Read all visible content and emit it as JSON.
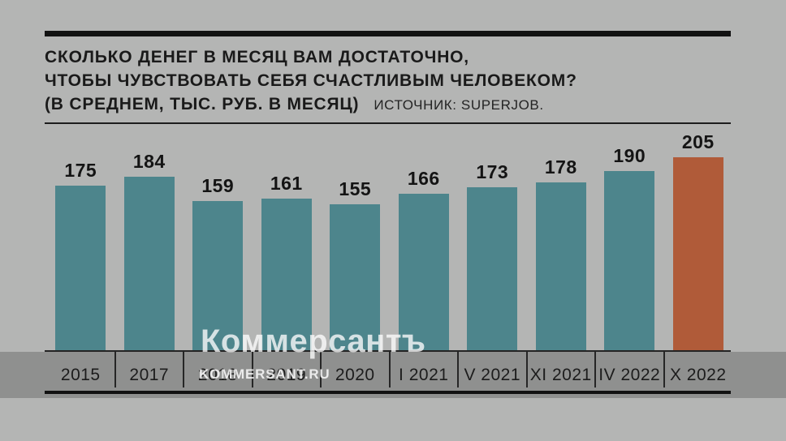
{
  "header": {
    "title_line1": "СКОЛЬКО ДЕНЕГ В МЕСЯЦ ВАМ ДОСТАТОЧНО,",
    "title_line2": "ЧТОБЫ ЧУВСТВОВАТЬ СЕБЯ СЧАСТЛИВЫМ ЧЕЛОВЕКОМ?",
    "title_line3": "(В СРЕДНЕМ, ТЫС. РУБ. В МЕСЯЦ)",
    "source": "ИСТОЧНИК: SUPERJOB."
  },
  "chart_data": {
    "type": "bar",
    "title": "СКОЛЬКО ДЕНЕГ В МЕСЯЦ ВАМ ДОСТАТОЧНО, ЧТОБЫ ЧУВСТВОВАТЬ СЕБЯ СЧАСТЛИВЫМ ЧЕЛОВЕКОМ? (В СРЕДНЕМ, ТЫС. РУБ. В МЕСЯЦ)",
    "source": "ИСТОЧНИК: SUPERJOB.",
    "categories": [
      "2015",
      "2017",
      "2018",
      "2019",
      "2020",
      "I 2021",
      "V 2021",
      "XI 2021",
      "IV 2022",
      "X 2022"
    ],
    "values": [
      175,
      184,
      159,
      161,
      155,
      166,
      173,
      178,
      190,
      205
    ],
    "data_labels": true,
    "ylim": [
      0,
      210
    ],
    "grid": false,
    "legend": "none",
    "bar_color": "#4d858c",
    "highlight_color": "#b05b39",
    "highlight_index": 9
  },
  "watermark": {
    "logo": "Коммерсантъ",
    "url": "KOMMERSANT.RU"
  },
  "colors": {
    "page_bg": "#b4b5b4",
    "band_bg": "#8f908f",
    "rule": "#121212"
  }
}
